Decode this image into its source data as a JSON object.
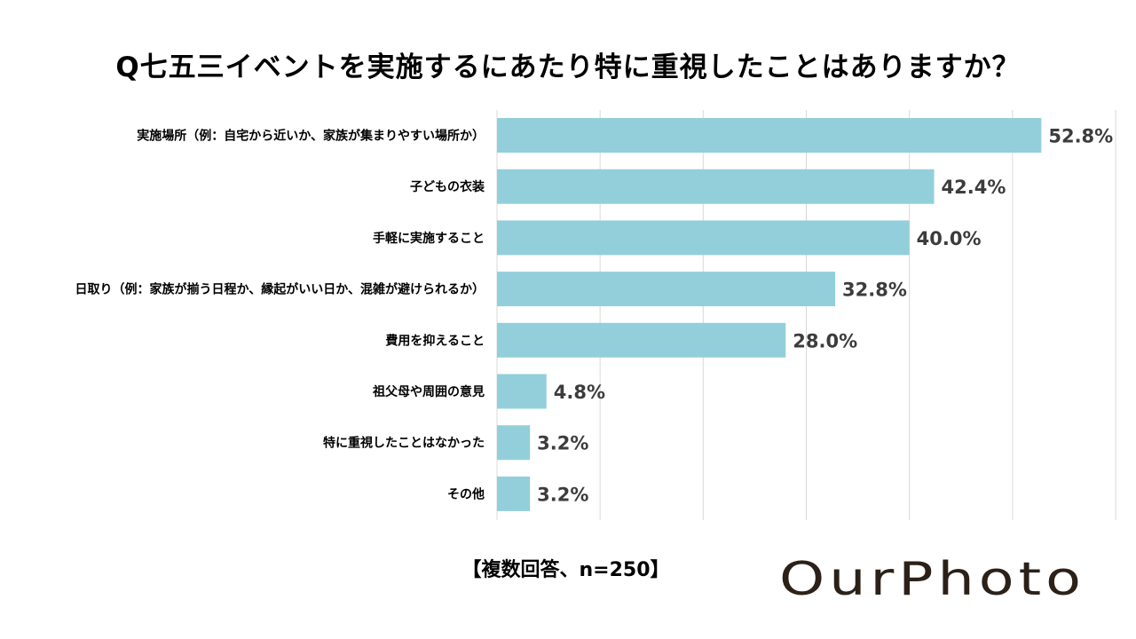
{
  "title": "Q七五三イベントを実施するにあたり特に重視したことはありますか？",
  "note": "【複数回答、n=250】",
  "logo_text": "OurPhoto",
  "colors": {
    "bar": "#92cfdb",
    "grid": "#d9d9d9",
    "logo": "#2b2118"
  },
  "chart_data": {
    "type": "bar",
    "orientation": "horizontal",
    "categories": [
      "実施場所（例：自宅から近いか、家族が集まりやすい場所か）",
      "子どもの衣装",
      "手軽に実施すること",
      "日取り（例：家族が揃う日程か、縁起がいい日か、混雑が避けられるか）",
      "費用を抑えること",
      "祖父母や周囲の意見",
      "特に重視したことはなかった",
      "その他"
    ],
    "values": [
      52.8,
      42.4,
      40.0,
      32.8,
      28.0,
      4.8,
      3.2,
      3.2
    ],
    "value_labels": [
      "52.8%",
      "42.4%",
      "40.0%",
      "32.8%",
      "28.0%",
      "4.8%",
      "3.2%",
      "3.2%"
    ],
    "xlim": [
      0,
      60
    ],
    "grid": true
  }
}
